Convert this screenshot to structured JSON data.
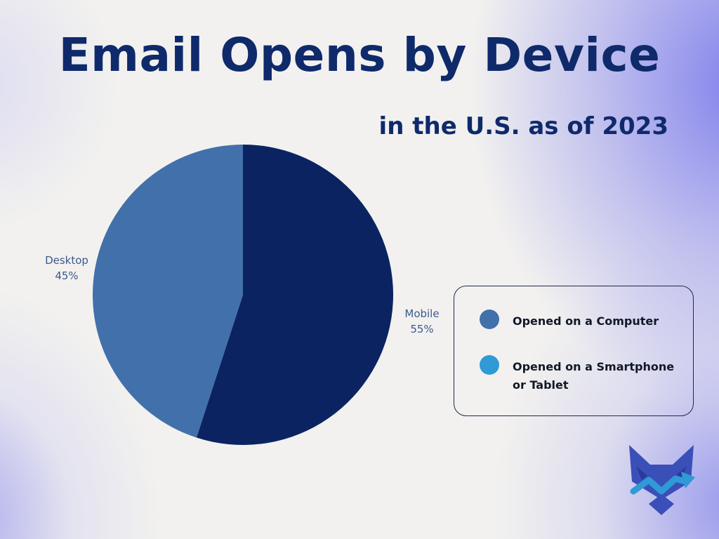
{
  "chart_data": {
    "type": "pie",
    "title": "Email Opens by Device",
    "subtitle": "in the U.S. as of 2023",
    "slices": [
      {
        "label": "Mobile",
        "value": 55,
        "value_label": "55%",
        "color": "#0b2461"
      },
      {
        "label": "Desktop",
        "value": 45,
        "value_label": "45%",
        "color": "#4270aa"
      }
    ],
    "legend": {
      "placement": "right",
      "entries": [
        {
          "label": "Opened on a Computer",
          "color": "#4270aa"
        },
        {
          "label": "Opened on a Smartphone or Tablet",
          "color": "#2f9ad6"
        }
      ]
    }
  },
  "logo": {
    "icon": "fox-chart-logo",
    "colors": [
      "#3b4fb8",
      "#2f9ad6"
    ]
  }
}
